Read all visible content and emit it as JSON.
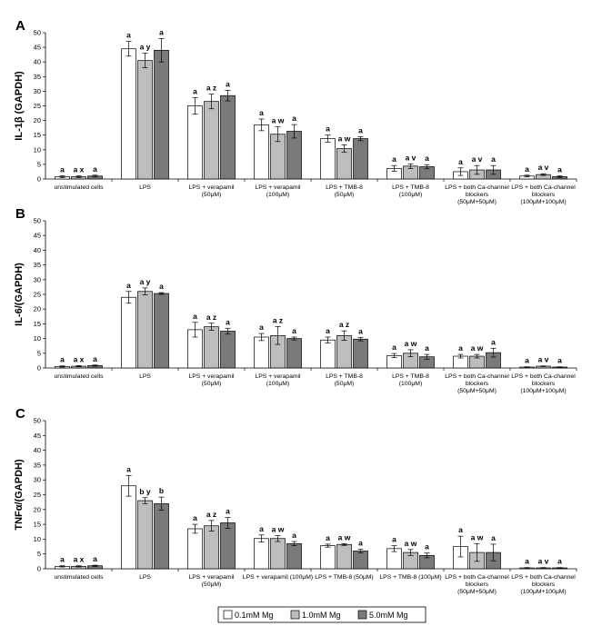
{
  "colors": {
    "series": [
      "#ffffff",
      "#bdbdbd",
      "#7a7a7a"
    ],
    "axis": "#000000",
    "error_bar": "#000000"
  },
  "legend_position": "bottom-center",
  "chart_data": [
    {
      "type": "bar",
      "panel_label": "A",
      "ylabel": "IL-1β (GAPDH)",
      "ylim": [
        0,
        50
      ],
      "ytick_step": 5,
      "categories": [
        [
          "unstimulated cells"
        ],
        [
          "LPS"
        ],
        [
          "LPS + verapamil",
          "(50μM)"
        ],
        [
          "LPS + verapamil",
          "(100μM)"
        ],
        [
          "LPS + TMB-8",
          "(50μM)"
        ],
        [
          "LPS + TMB-8",
          "(100μM)"
        ],
        [
          "LPS + both Ca-channel",
          "blockers",
          "(50μM+50μM)"
        ],
        [
          "LPS + both Ca-channel",
          "blockers",
          "(100μM+100μM)"
        ]
      ],
      "series": [
        {
          "name": "0.1mM Mg",
          "values": [
            0.8,
            44.5,
            25.0,
            18.5,
            13.8,
            3.6,
            2.5,
            1.0
          ],
          "errors": [
            0.3,
            2.5,
            2.8,
            2.0,
            1.2,
            1.0,
            1.3,
            0.3
          ]
        },
        {
          "name": "1.0mM Mg",
          "values": [
            0.8,
            40.5,
            26.5,
            15.3,
            10.4,
            4.4,
            3.1,
            1.5
          ],
          "errors": [
            0.3,
            2.5,
            2.5,
            2.5,
            1.3,
            0.8,
            1.5,
            0.3
          ]
        },
        {
          "name": "5.0mM Mg",
          "values": [
            1.0,
            44.0,
            28.5,
            16.3,
            13.8,
            4.2,
            3.1,
            0.8
          ],
          "errors": [
            0.3,
            4.0,
            1.8,
            2.3,
            0.7,
            0.7,
            1.5,
            0.3
          ]
        }
      ],
      "annotations": [
        [
          "a",
          "a x",
          "a"
        ],
        [
          "a",
          "a y",
          "a"
        ],
        [
          "a",
          "a z",
          "a"
        ],
        [
          "a",
          "a w",
          "a"
        ],
        [
          "a",
          "a w",
          "a"
        ],
        [
          "a",
          "a v",
          "a"
        ],
        [
          "a",
          "a v",
          "a"
        ],
        [
          "a",
          "a v",
          "a"
        ]
      ]
    },
    {
      "type": "bar",
      "panel_label": "B",
      "ylabel": "IL-6/(GAPDH)",
      "ylim": [
        0,
        50
      ],
      "ytick_step": 5,
      "categories": [
        [
          "unstimulated cells"
        ],
        [
          "LPS"
        ],
        [
          "LPS + verapamil",
          "(50μM)"
        ],
        [
          "LPS + verapamil",
          "(100μM)"
        ],
        [
          "LPS + TMB-8",
          "(50μM)"
        ],
        [
          "LPS + TMB-8",
          "(100μM)"
        ],
        [
          "LPS + both Ca-channel",
          "blockers",
          "(50μM+50μM)"
        ],
        [
          "LPS + both Ca-channel",
          "blockers",
          "(100μM+100μM)"
        ]
      ],
      "series": [
        {
          "name": "0.1mM Mg",
          "values": [
            0.5,
            24.0,
            13.0,
            10.5,
            9.5,
            4.2,
            4.0,
            0.3
          ],
          "errors": [
            0.2,
            2.0,
            2.5,
            1.2,
            1.0,
            0.7,
            0.6,
            0.1
          ]
        },
        {
          "name": "1.0mM Mg",
          "values": [
            0.6,
            26.0,
            14.0,
            11.0,
            11.0,
            5.0,
            4.0,
            0.6
          ],
          "errors": [
            0.2,
            1.2,
            1.2,
            3.0,
            1.6,
            1.2,
            0.6,
            0.1
          ]
        },
        {
          "name": "5.0mM Mg",
          "values": [
            0.8,
            25.3,
            12.5,
            10.0,
            9.8,
            3.8,
            5.2,
            0.3
          ],
          "errors": [
            0.2,
            0.3,
            1.0,
            0.5,
            0.6,
            0.8,
            1.5,
            0.1
          ]
        }
      ],
      "annotations": [
        [
          "a",
          "a x",
          "a"
        ],
        [
          "a",
          "a y",
          "a"
        ],
        [
          "a",
          "a z",
          "a"
        ],
        [
          "a",
          "a z",
          "a"
        ],
        [
          "a",
          "a z",
          "a"
        ],
        [
          "a",
          "a w",
          "a"
        ],
        [
          "a",
          "a w",
          "a"
        ],
        [
          "a",
          "a v",
          "a"
        ]
      ]
    },
    {
      "type": "bar",
      "panel_label": "C",
      "ylabel": "TNFα/(GAPDH)",
      "ylim": [
        0,
        50
      ],
      "ytick_step": 5,
      "categories": [
        [
          "unstimulated cells"
        ],
        [
          "LPS"
        ],
        [
          "LPS + verapamil",
          "(50μM)"
        ],
        [
          "LPS + verapamil (100μM)"
        ],
        [
          "LPS + TMB-8 (50μM)"
        ],
        [
          "LPS + TMB-8 (100μM)"
        ],
        [
          "LPS + both Ca-channel",
          "blockers",
          "(50μM+50μM)"
        ],
        [
          "LPS + both Ca-channel",
          "blockers",
          "(100μM+100μM)"
        ]
      ],
      "series": [
        {
          "name": "0.1mM Mg",
          "values": [
            0.8,
            28.0,
            13.5,
            10.2,
            7.8,
            6.8,
            7.5,
            0.3
          ],
          "errors": [
            0.2,
            3.5,
            1.5,
            1.2,
            0.5,
            1.0,
            3.5,
            0.1
          ]
        },
        {
          "name": "1.0mM Mg",
          "values": [
            0.8,
            23.0,
            14.5,
            10.2,
            8.2,
            5.5,
            5.5,
            0.3
          ],
          "errors": [
            0.2,
            1.0,
            1.8,
            1.0,
            0.3,
            1.0,
            3.0,
            0.1
          ]
        },
        {
          "name": "5.0mM Mg",
          "values": [
            1.0,
            22.0,
            15.5,
            8.5,
            6.0,
            4.5,
            5.5,
            0.3
          ],
          "errors": [
            0.2,
            2.2,
            1.8,
            0.7,
            0.6,
            0.8,
            2.8,
            0.1
          ]
        }
      ],
      "annotations": [
        [
          "a",
          "a x",
          "a"
        ],
        [
          "a",
          "b y",
          "b"
        ],
        [
          "a",
          "a z",
          "a"
        ],
        [
          "a",
          "a w",
          "a"
        ],
        [
          "a",
          "a w",
          "a"
        ],
        [
          "a",
          "a w",
          "a"
        ],
        [
          "a",
          "a w",
          "a"
        ],
        [
          "a",
          "a v",
          "a"
        ]
      ]
    }
  ],
  "legend": {
    "items": [
      "0.1mM Mg",
      "1.0mM Mg",
      "5.0mM Mg"
    ]
  }
}
